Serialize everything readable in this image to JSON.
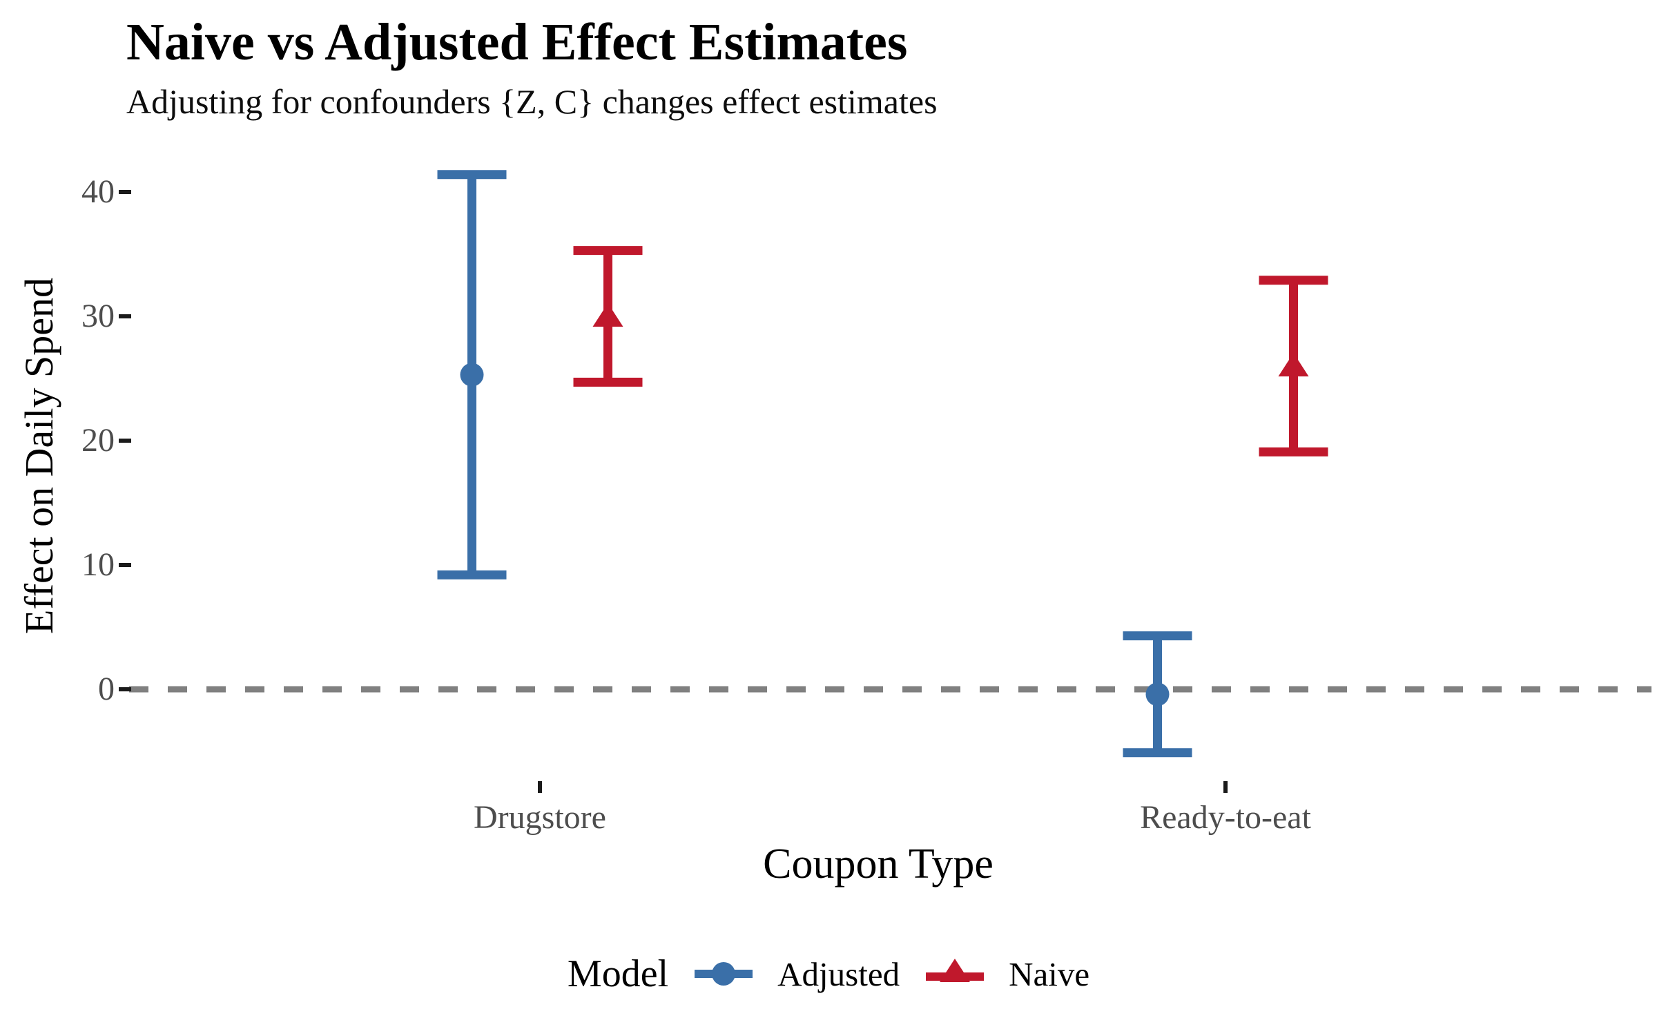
{
  "chart": {
    "title": "Naive vs Adjusted Effect Estimates",
    "subtitle": "Adjusting for confounders {Z, C} changes effect estimates"
  },
  "axes": {
    "x": {
      "title": "Coupon Type",
      "categories": [
        "Drugstore",
        "Ready-to-eat"
      ]
    },
    "y": {
      "title": "Effect on Daily Spend",
      "ticks": [
        0,
        10,
        20,
        30,
        40
      ]
    }
  },
  "legend": {
    "title": "Model",
    "items": [
      {
        "label": "Adjusted",
        "marker": "circle-icon",
        "color": "#3A6FA8"
      },
      {
        "label": "Naive",
        "marker": "triangle-icon",
        "color": "#C0182C"
      }
    ]
  },
  "reference_line": {
    "y": 0,
    "style": "dashed",
    "color": "#808080"
  },
  "chart_data": {
    "type": "scatter",
    "subtype": "pointrange-with-errorbars",
    "title": "Naive vs Adjusted Effect Estimates",
    "subtitle": "Adjusting for confounders {Z, C} changes effect estimates",
    "xlabel": "Coupon Type",
    "ylabel": "Effect on Daily Spend",
    "categories": [
      "Drugstore",
      "Ready-to-eat"
    ],
    "ylim": [
      -7,
      43
    ],
    "yticks": [
      0,
      10,
      20,
      30,
      40
    ],
    "grid": false,
    "legend_position": "bottom",
    "zero_line": 0,
    "series": [
      {
        "name": "Adjusted",
        "color": "#3A6FA8",
        "marker": "circle",
        "points": [
          {
            "category": "Drugstore",
            "estimate": 25.3,
            "ci_low": 9.2,
            "ci_high": 41.4
          },
          {
            "category": "Ready-to-eat",
            "estimate": -0.4,
            "ci_low": -5.1,
            "ci_high": 4.3
          }
        ]
      },
      {
        "name": "Naive",
        "color": "#C0182C",
        "marker": "triangle",
        "points": [
          {
            "category": "Drugstore",
            "estimate": 30.0,
            "ci_low": 24.7,
            "ci_high": 35.3
          },
          {
            "category": "Ready-to-eat",
            "estimate": 26.0,
            "ci_low": 19.1,
            "ci_high": 32.9
          }
        ]
      }
    ]
  }
}
